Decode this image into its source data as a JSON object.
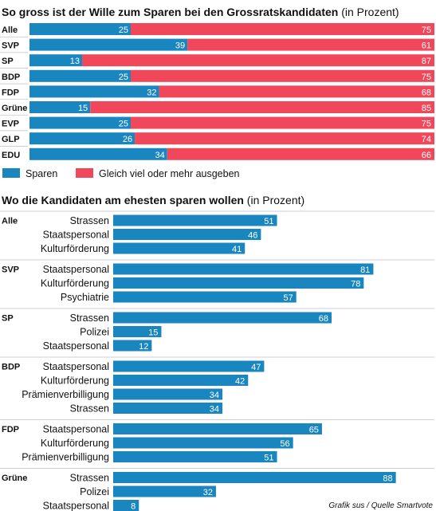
{
  "colors": {
    "sparen": "#1a86c0",
    "ausgeben": "#f0485a",
    "rule": "#bfbfbf"
  },
  "chart_data": [
    {
      "type": "bar",
      "stacked": true,
      "orientation": "horizontal",
      "title": "So gross ist der Wille zum Sparen bei den Grossratskandidaten",
      "title_unit": "(in Prozent)",
      "categories": [
        "Alle",
        "SVP",
        "SP",
        "BDP",
        "FDP",
        "Grüne",
        "EVP",
        "GLP",
        "EDU"
      ],
      "series": [
        {
          "name": "Sparen",
          "values": [
            25,
            39,
            13,
            25,
            32,
            15,
            25,
            26,
            34
          ]
        },
        {
          "name": "Gleich viel oder mehr ausgeben",
          "values": [
            75,
            61,
            87,
            75,
            68,
            85,
            75,
            74,
            66
          ]
        }
      ],
      "xlim": [
        0,
        100
      ],
      "legend": "bottom-left"
    },
    {
      "type": "bar",
      "orientation": "horizontal",
      "title": "Wo die Kandidaten am ehesten sparen wollen",
      "title_unit": "(in Prozent)",
      "xlim": [
        0,
        100
      ],
      "groups": [
        {
          "party": "Alle",
          "items": [
            {
              "label": "Strassen",
              "value": 51
            },
            {
              "label": "Staatspersonal",
              "value": 46
            },
            {
              "label": "Kulturförderung",
              "value": 41
            }
          ]
        },
        {
          "party": "SVP",
          "items": [
            {
              "label": "Staatspersonal",
              "value": 81
            },
            {
              "label": "Kulturförderung",
              "value": 78
            },
            {
              "label": "Psychiatrie",
              "value": 57
            }
          ]
        },
        {
          "party": "SP",
          "items": [
            {
              "label": "Strassen",
              "value": 68
            },
            {
              "label": "Polizei",
              "value": 15
            },
            {
              "label": "Staatspersonal",
              "value": 12
            }
          ]
        },
        {
          "party": "BDP",
          "items": [
            {
              "label": "Staatspersonal",
              "value": 47
            },
            {
              "label": "Kulturförderung",
              "value": 42
            },
            {
              "label": "Prämienverbilligung",
              "value": 34
            },
            {
              "label": "Strassen",
              "value": 34
            }
          ]
        },
        {
          "party": "FDP",
          "items": [
            {
              "label": "Staatspersonal",
              "value": 65
            },
            {
              "label": "Kulturförderung",
              "value": 56
            },
            {
              "label": "Prämienverbilligung",
              "value": 51
            }
          ]
        },
        {
          "party": "Grüne",
          "items": [
            {
              "label": "Strassen",
              "value": 88
            },
            {
              "label": "Polizei",
              "value": 32
            },
            {
              "label": "Staatspersonal",
              "value": 8
            }
          ]
        }
      ]
    }
  ],
  "credit": "Grafik sus / Quelle Smartvote"
}
